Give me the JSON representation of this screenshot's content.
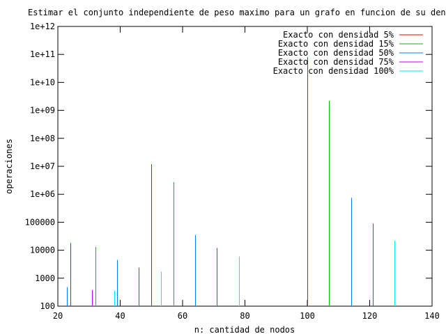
{
  "chart_data": {
    "type": "bar",
    "title": "Estimar el conjunto independiente de peso maximo para un grafo en funcion de su densidad",
    "xlabel": "n: cantidad de nodos",
    "ylabel": "operaciones",
    "xlim": [
      20,
      140
    ],
    "ylim": [
      100,
      1000000000000
    ],
    "yscale": "log",
    "xticks": [
      "20",
      "40",
      "60",
      "80",
      "100",
      "120",
      "140"
    ],
    "yticks": [
      "100",
      "1000",
      "10000",
      "100000",
      "1e+06",
      "1e+07",
      "1e+08",
      "1e+09",
      "1e+10",
      "1e+11",
      "1e+12"
    ],
    "grid": false,
    "legend_position": "top-right",
    "series": [
      {
        "name": "Exacto con densidad 5%",
        "color": "#ff0000",
        "points": [
          {
            "x": 24,
            "y": 18000
          },
          {
            "x": 50,
            "y": 12000000
          },
          {
            "x": 100,
            "y": 80000000000
          }
        ]
      },
      {
        "name": "Exacto con densidad 15%",
        "color": "#00c000",
        "points": [
          {
            "x": 32,
            "y": 13000
          },
          {
            "x": 57,
            "y": 2700000
          },
          {
            "x": 107,
            "y": 2200000000
          }
        ]
      },
      {
        "name": "Exacto con densidad 50%",
        "color": "#0080ff",
        "points": [
          {
            "x": 23,
            "y": 480
          },
          {
            "x": 39,
            "y": 4500
          },
          {
            "x": 64,
            "y": 35000
          },
          {
            "x": 114,
            "y": 750000
          }
        ]
      },
      {
        "name": "Exacto con densidad 75%",
        "color": "#c000ff",
        "points": [
          {
            "x": 31,
            "y": 380
          },
          {
            "x": 46,
            "y": 2400
          },
          {
            "x": 71,
            "y": 12000
          },
          {
            "x": 121,
            "y": 90000
          }
        ]
      },
      {
        "name": "Exacto con densidad 100%",
        "color": "#00eeee",
        "points": [
          {
            "x": 38,
            "y": 360
          },
          {
            "x": 53,
            "y": 1700
          },
          {
            "x": 78,
            "y": 6000
          },
          {
            "x": 128,
            "y": 22000
          }
        ]
      }
    ]
  }
}
